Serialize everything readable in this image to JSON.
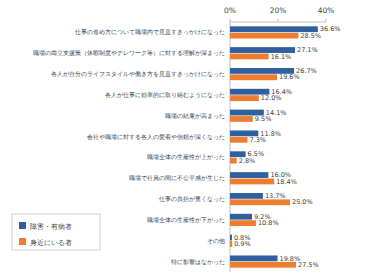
{
  "chart_data": {
    "type": "bar",
    "orientation": "horizontal",
    "categories": [
      "仕事の進め方について職場内で見直すきっかけになった",
      "職場の両立支援策（休暇制度やテレワーク等）に対する理解が深まった",
      "各人が自分のライフスタイルや働き方を見直すきっかけになった",
      "各人が仕事に効率的に取り組むようになった",
      "職場の結束が高まった",
      "会社や職場に対する各人の愛着や信頼が深くなった",
      "職場全体の生産性が上がった",
      "職場で社員の間に不公平感が生じた",
      "仕事の負担が重くなった",
      "職場全体の生産性が下がった",
      "その他",
      "特に影響はなかった"
    ],
    "series": [
      {
        "name": "障害・有病者",
        "color": "#2f5f9e",
        "values": [
          36.6,
          27.1,
          26.7,
          16.4,
          14.1,
          11.8,
          6.5,
          16.0,
          13.7,
          9.2,
          0.8,
          19.8
        ],
        "value_labels": [
          "36.6%",
          "27.1%",
          "26.7%",
          "16.4%",
          "14.1%",
          "11.8%",
          "6.5%",
          "16.0%",
          "13.7%",
          "9.2%",
          "0.8%",
          "19.8%"
        ]
      },
      {
        "name": "身近にいる者",
        "color": "#ed7d31",
        "values": [
          28.5,
          16.1,
          19.6,
          12.0,
          9.5,
          7.3,
          2.8,
          18.4,
          25.0,
          10.8,
          0.9,
          27.5
        ],
        "value_labels": [
          "28.5%",
          "16.1%",
          "19.6%",
          "12.0%",
          "9.5%",
          "7.3%",
          "2.8%",
          "18.4%",
          "25.0%",
          "10.8%",
          "0.9%",
          "27.5%"
        ]
      }
    ],
    "xlim": [
      0,
      40
    ],
    "xticks": [
      {
        "value": 0,
        "label": "0%"
      },
      {
        "value": 20,
        "label": "20%"
      },
      {
        "value": 40,
        "label": "40%"
      }
    ],
    "grid": false,
    "legend": "lower left",
    "data_labels": true
  }
}
